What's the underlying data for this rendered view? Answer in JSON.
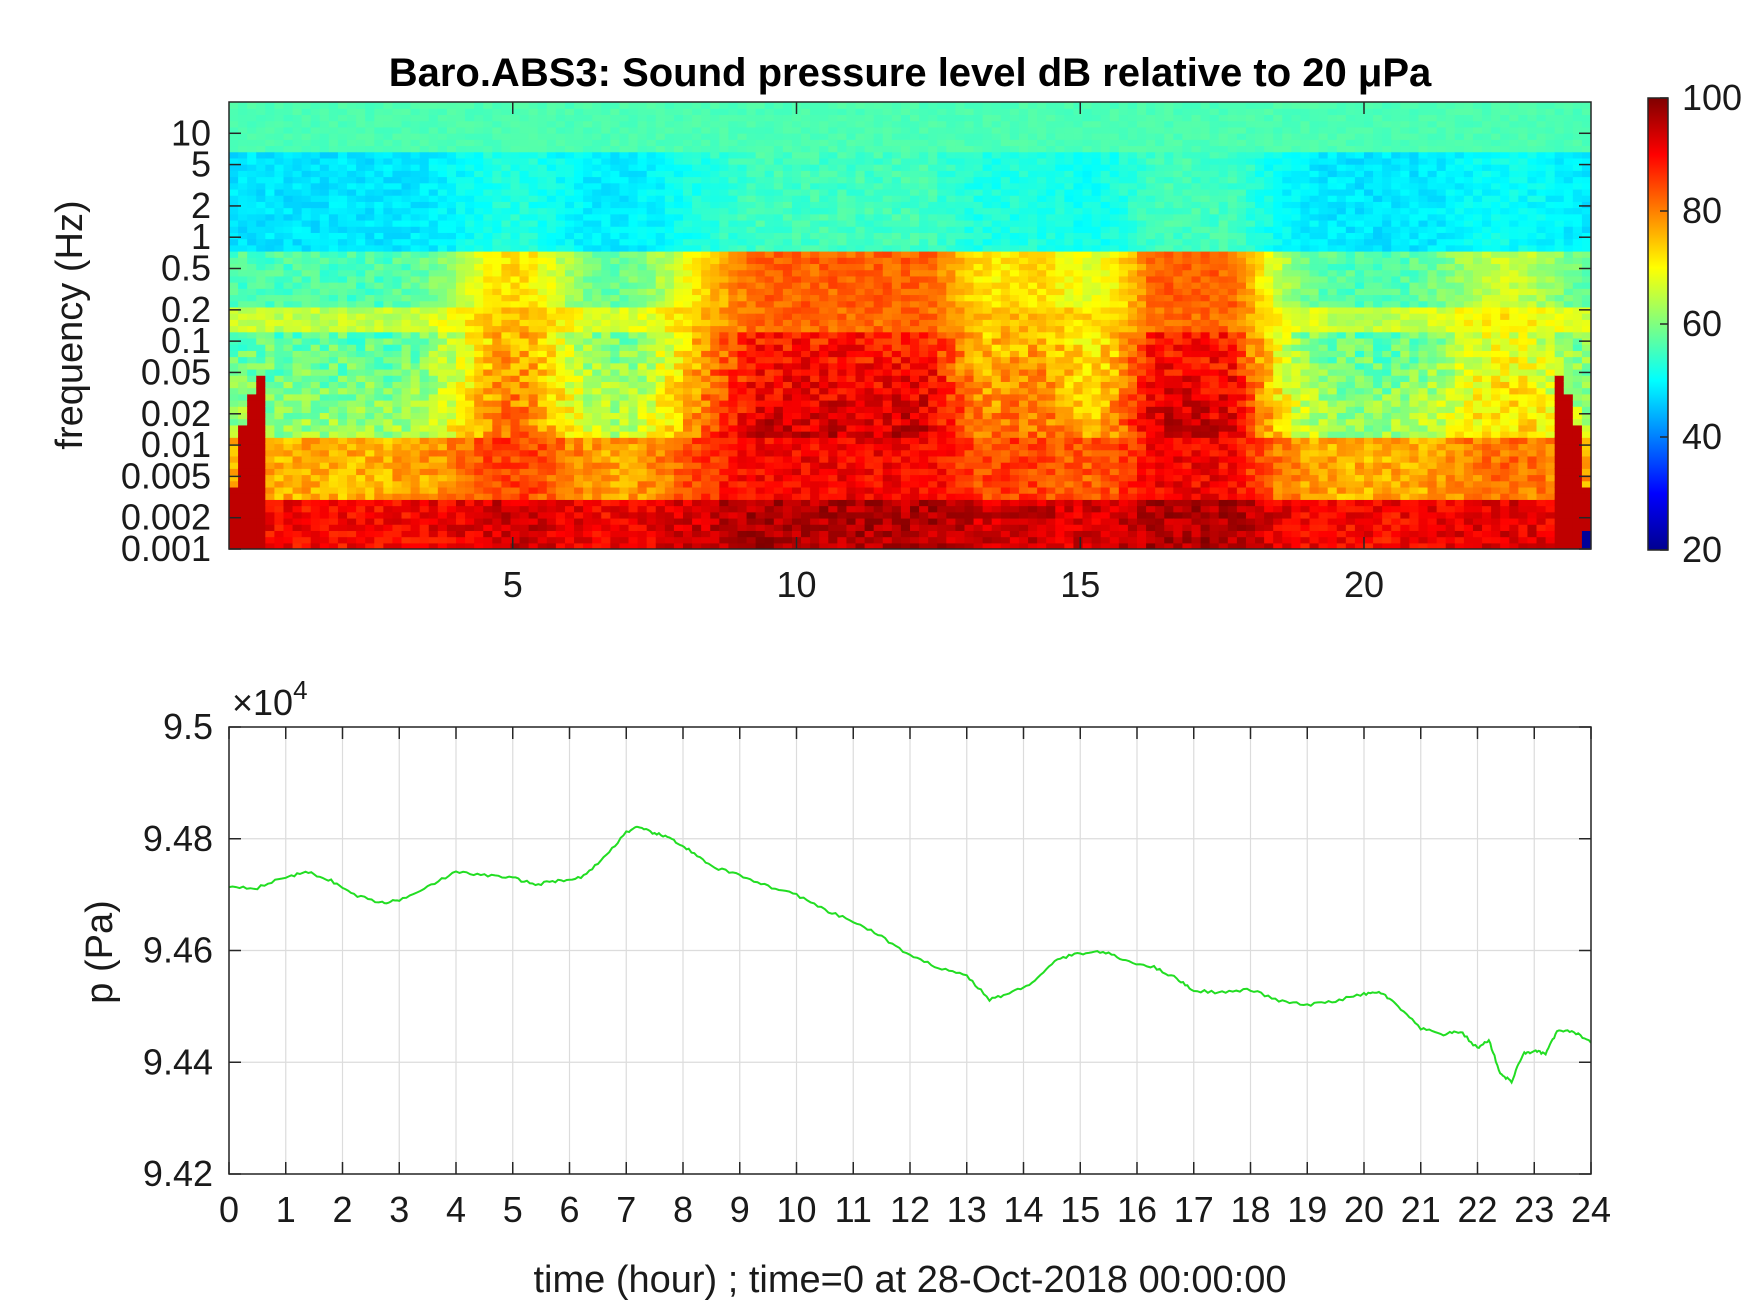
{
  "chart_data": [
    {
      "type": "heatmap",
      "title": "Baro.ABS3: Sound pressure level dB relative to 20 μPa",
      "ylabel": "frequency (Hz)",
      "xlabel": "",
      "xlim": [
        0,
        24
      ],
      "x_ticks": [
        5,
        10,
        15,
        20
      ],
      "x_tick_labels": [
        "5",
        "10",
        "15",
        "20"
      ],
      "y_scale": "log",
      "ylim": [
        0.001,
        20
      ],
      "y_ticks": [
        0.001,
        0.002,
        0.005,
        0.01,
        0.02,
        0.05,
        0.1,
        0.2,
        0.5,
        1,
        2,
        5,
        10
      ],
      "y_tick_labels": [
        "0.001",
        "0.002",
        "0.005",
        "0.01",
        "0.02",
        "0.05",
        "0.1",
        "0.2",
        "0.5",
        "1",
        "2",
        "5",
        "10"
      ],
      "colorbar": {
        "colormap": "jet",
        "range": [
          20,
          100
        ],
        "ticks": [
          20,
          40,
          60,
          80,
          100
        ],
        "tick_labels": [
          "20",
          "40",
          "60",
          "80",
          "100"
        ]
      },
      "high_level_hours": [
        {
          "hour": 5,
          "intensity": 0.75
        },
        {
          "hour": 8.6,
          "intensity": 0.7
        },
        {
          "hour": 10,
          "intensity": 0.95
        },
        {
          "hour": 11,
          "intensity": 1.0
        },
        {
          "hour": 12.2,
          "intensity": 0.95
        },
        {
          "hour": 14.2,
          "intensity": 0.7
        },
        {
          "hour": 16.5,
          "intensity": 0.95
        },
        {
          "hour": 17.5,
          "intensity": 0.9
        },
        {
          "hour": 22.5,
          "intensity": 0.45
        }
      ]
    },
    {
      "type": "line",
      "title": "",
      "xlabel": "time (hour) ; time=0 at 28-Oct-2018 00:00:00",
      "ylabel": "p (Pa)",
      "exponent_label": "×10",
      "exponent_power": "4",
      "xlim": [
        0,
        24
      ],
      "ylim": [
        94200,
        95000
      ],
      "x_ticks": [
        0,
        1,
        2,
        3,
        4,
        5,
        6,
        7,
        8,
        9,
        10,
        11,
        12,
        13,
        14,
        15,
        16,
        17,
        18,
        19,
        20,
        21,
        22,
        23,
        24
      ],
      "x_tick_labels": [
        "0",
        "1",
        "2",
        "3",
        "4",
        "5",
        "6",
        "7",
        "8",
        "9",
        "10",
        "11",
        "12",
        "13",
        "14",
        "15",
        "16",
        "17",
        "18",
        "19",
        "20",
        "21",
        "22",
        "23",
        "24"
      ],
      "y_ticks": [
        94200,
        94400,
        94600,
        94800,
        95000
      ],
      "y_tick_labels": [
        "9.42",
        "9.44",
        "9.46",
        "9.48",
        "9.5"
      ],
      "grid": true,
      "series": [
        {
          "color": "#22dd22",
          "x": [
            0,
            0.5,
            1,
            1.4,
            1.8,
            2.2,
            2.7,
            3.0,
            3.5,
            4.0,
            4.5,
            5.0,
            5.4,
            5.8,
            6.2,
            6.6,
            7.0,
            7.2,
            7.5,
            7.8,
            8.1,
            8.5,
            9.0,
            9.5,
            10.0,
            10.5,
            11.0,
            11.5,
            12.0,
            12.5,
            13.0,
            13.4,
            13.8,
            14.2,
            14.6,
            15.0,
            15.4,
            15.8,
            16.3,
            16.7,
            17.0,
            17.5,
            18.0,
            18.5,
            19.0,
            19.5,
            20.0,
            20.3,
            20.6,
            21.0,
            21.4,
            21.7,
            22.0,
            22.2,
            22.4,
            22.6,
            22.8,
            23.0,
            23.2,
            23.4,
            23.7,
            24.0
          ],
          "y": [
            94715,
            94712,
            94732,
            94740,
            94725,
            94700,
            94685,
            94690,
            94715,
            94740,
            94735,
            94730,
            94718,
            94725,
            94730,
            94765,
            94812,
            94820,
            94810,
            94800,
            94780,
            94750,
            94735,
            94715,
            94700,
            94672,
            94652,
            94625,
            94590,
            94570,
            94555,
            94512,
            94525,
            94545,
            94585,
            94595,
            94598,
            94582,
            94570,
            94550,
            94528,
            94525,
            94530,
            94510,
            94502,
            94510,
            94522,
            94525,
            94500,
            94460,
            94450,
            94455,
            94425,
            94440,
            94380,
            94365,
            94415,
            94420,
            94415,
            94455,
            94455,
            94435
          ]
        }
      ]
    }
  ]
}
